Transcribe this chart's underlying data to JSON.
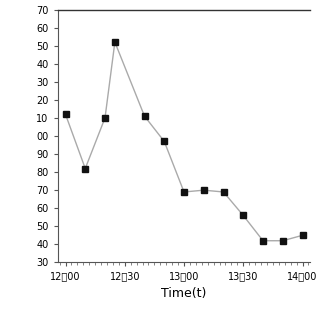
{
  "time_labels": [
    "12：00",
    "12：30",
    "13：00",
    "13：30",
    "14：00"
  ],
  "time_minutes": [
    0,
    10,
    20,
    25,
    40,
    50,
    60,
    70,
    80,
    90,
    100,
    110,
    120
  ],
  "x_tick_minutes": [
    0,
    30,
    60,
    90,
    120
  ],
  "y_values": [
    112,
    82,
    110,
    152,
    111,
    97,
    69,
    70,
    69,
    56,
    42,
    42,
    45
  ],
  "ylim": [
    30,
    170
  ],
  "ytick_values": [
    30,
    40,
    50,
    60,
    70,
    80,
    90,
    100,
    110,
    120,
    130,
    140,
    150,
    160,
    170
  ],
  "ytick_labels": [
    "30",
    "40",
    "50",
    "60",
    "70",
    "80",
    "90",
    "00",
    "10",
    "20",
    "30",
    "40",
    "50",
    "60",
    "70"
  ],
  "xlabel": "Time(t)",
  "line_color": "#aaaaaa",
  "marker_color": "#111111",
  "marker_edge_color": "#111111",
  "spine_color": "#555555",
  "top_spine_color": "#333333",
  "bg_color": "#ffffff",
  "xlabel_fontsize": 9,
  "tick_fontsize": 7,
  "marker_size": 5,
  "line_width": 1.0
}
